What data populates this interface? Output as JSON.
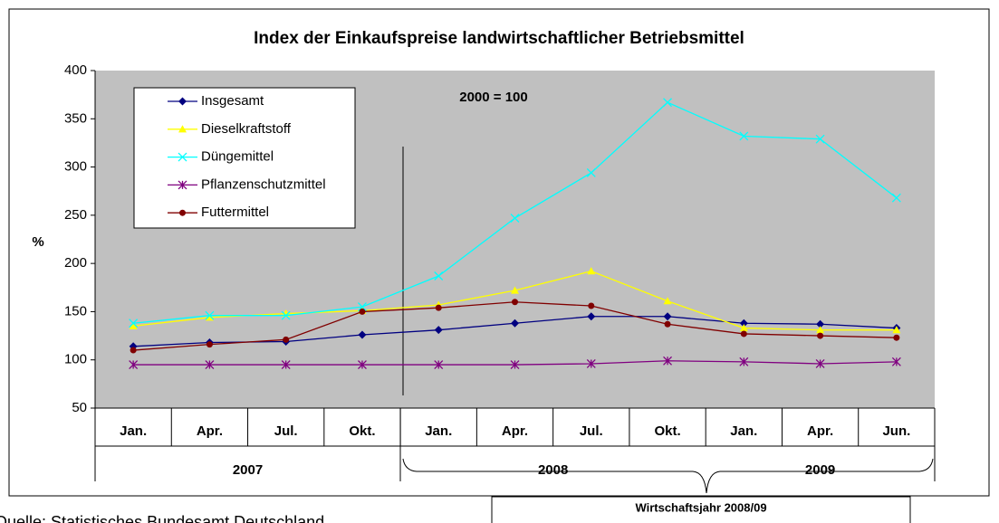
{
  "chart_data": {
    "type": "line",
    "title": "Index der Einkaufspreise landwirtschaftlicher Betriebsmittel",
    "y_label": "%",
    "annotation": "2000 = 100",
    "categories": [
      "Jan.",
      "Apr.",
      "Jul.",
      "Okt.",
      "Jan.",
      "Apr.",
      "Jul.",
      "Okt.",
      "Jan.",
      "Apr.",
      "Jun."
    ],
    "category_groups": [
      "2007",
      "2008",
      "2009"
    ],
    "season_label": "Wirtschaftsjahr 2008/09",
    "source": "Quelle: Statistisches Bundesamt Deutschland",
    "ylim": [
      50,
      400
    ],
    "yticks": [
      50,
      100,
      150,
      200,
      250,
      300,
      350,
      400
    ],
    "grid": false,
    "series": [
      {
        "name": "Insgesamt",
        "color": "#000080",
        "marker": "diamond",
        "values": [
          114,
          118,
          119,
          126,
          131,
          138,
          145,
          145,
          138,
          137,
          133
        ]
      },
      {
        "name": "Dieselkraftstoff",
        "color": "#ffff00",
        "marker": "triangle",
        "values": [
          135,
          144,
          148,
          151,
          157,
          172,
          192,
          161,
          133,
          131,
          131
        ]
      },
      {
        "name": "Düngemittel",
        "color": "#00ffff",
        "marker": "x",
        "values": [
          138,
          146,
          146,
          155,
          187,
          247,
          294,
          367,
          332,
          329,
          268
        ]
      },
      {
        "name": "Pflanzenschutzmittel",
        "color": "#800080",
        "marker": "star",
        "values": [
          95,
          95,
          95,
          95,
          95,
          95,
          96,
          99,
          98,
          96,
          98
        ]
      },
      {
        "name": "Futtermittel",
        "color": "#800000",
        "marker": "circle",
        "values": [
          110,
          116,
          121,
          150,
          154,
          160,
          156,
          137,
          127,
          125,
          123
        ]
      }
    ]
  }
}
